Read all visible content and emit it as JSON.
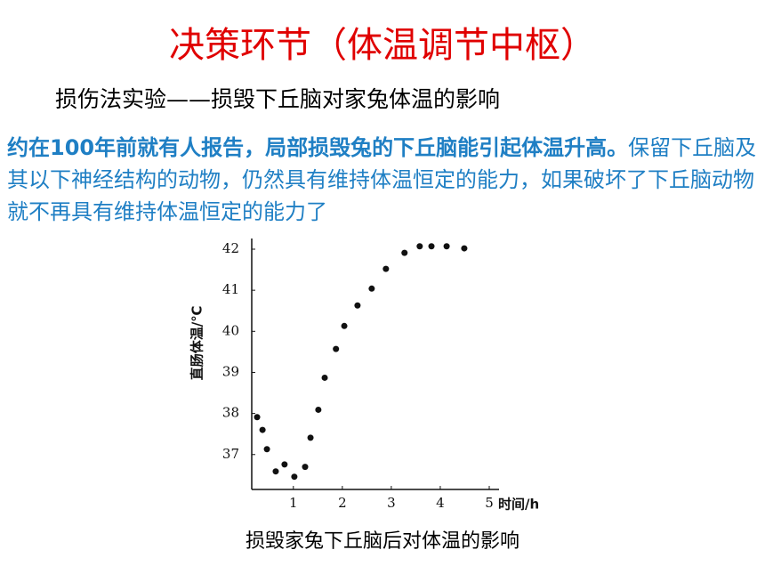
{
  "title": "决策环节（体温调节中枢）",
  "subtitle": "损伤法实验——损毁下丘脑对家兔体温的影响",
  "paragraph": {
    "bold": "约在100年前就有人报告，局部损毁兔的下丘脑能引起体温升高。",
    "normal": "保留下丘脑及其以下神经结构的动物，仍然具有维持体温恒定的能力，如果破坏了下丘脑动物就不再具有维持体温恒定的能力了"
  },
  "caption": "损毁家兔下丘脑后对体温的影响",
  "chart_data": {
    "type": "scatter",
    "y_label": "直肠体温/℃",
    "x_label": "时间/h",
    "color": "#111111",
    "x": [
      0.26,
      0.37,
      0.46,
      0.64,
      0.82,
      1.02,
      1.24,
      1.35,
      1.51,
      1.64,
      1.87,
      2.04,
      2.31,
      2.6,
      2.89,
      3.27,
      3.58,
      3.82,
      4.13,
      4.49
    ],
    "values": [
      37.91,
      37.6,
      37.13,
      36.59,
      36.76,
      36.46,
      36.7,
      37.41,
      38.09,
      38.87,
      39.57,
      40.13,
      40.63,
      41.04,
      41.52,
      41.91,
      42.07,
      42.07,
      42.07,
      42.02
    ],
    "xlim": [
      0.15,
      5.2
    ],
    "xticks": [
      1,
      2,
      3,
      4,
      5
    ],
    "ylim": [
      36.15,
      42.26
    ],
    "yticks": [
      37,
      38,
      39,
      40,
      41,
      42
    ]
  }
}
